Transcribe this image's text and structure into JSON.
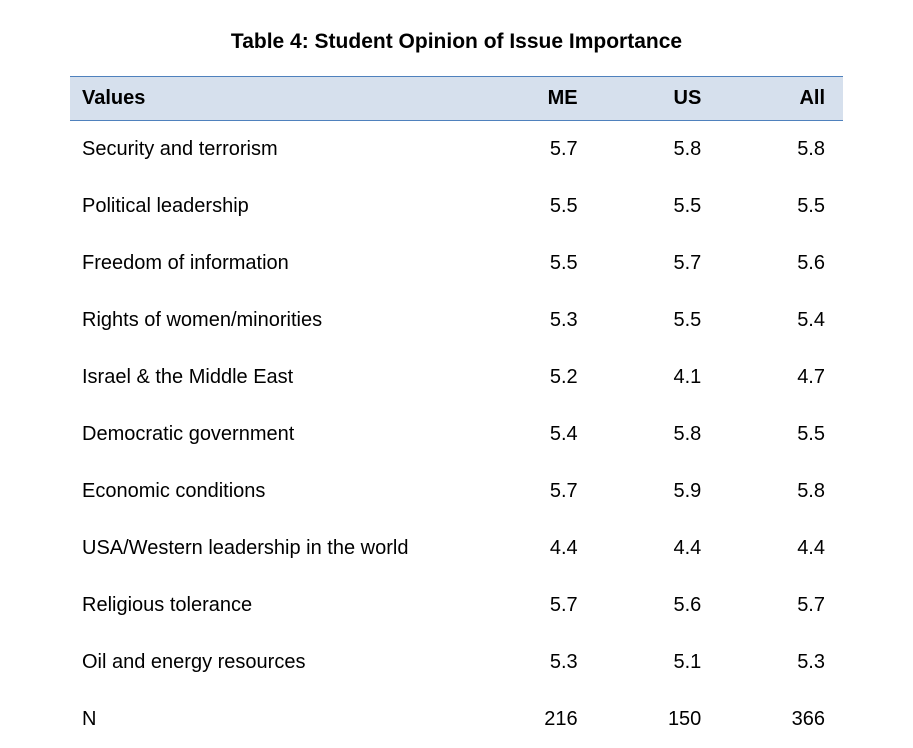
{
  "title": "Table 4:  Student Opinion of Issue Importance",
  "table": {
    "type": "table",
    "header_bg": "#d6e0ed",
    "header_border_top": "#4f81bd",
    "header_border_bottom": "#4f81bd",
    "header_border_width": 1,
    "font_family": "Arial",
    "header_fontsize": 20,
    "body_fontsize": 20,
    "text_color": "#000000",
    "background_color": "#ffffff",
    "col_widths_pct": [
      52,
      16,
      16,
      16
    ],
    "col_align": [
      "left",
      "right",
      "right",
      "right"
    ],
    "columns": [
      "Values",
      "ME",
      "US",
      "All"
    ],
    "rows": [
      [
        "Security and terrorism",
        "5.7",
        "5.8",
        "5.8"
      ],
      [
        "Political leadership",
        "5.5",
        "5.5",
        "5.5"
      ],
      [
        "Freedom of information",
        "5.5",
        "5.7",
        "5.6"
      ],
      [
        "Rights of women/minorities",
        "5.3",
        "5.5",
        "5.4"
      ],
      [
        "Israel & the Middle East",
        "5.2",
        "4.1",
        "4.7"
      ],
      [
        "Democratic government",
        "5.4",
        "5.8",
        "5.5"
      ],
      [
        "Economic conditions",
        "5.7",
        "5.9",
        "5.8"
      ],
      [
        "USA/Western leadership in the world",
        "4.4",
        "4.4",
        "4.4"
      ],
      [
        "Religious tolerance",
        "5.7",
        "5.6",
        "5.7"
      ],
      [
        "Oil and energy resources",
        "5.3",
        "5.1",
        "5.3"
      ],
      [
        "N",
        "216",
        "150",
        "366"
      ]
    ]
  }
}
